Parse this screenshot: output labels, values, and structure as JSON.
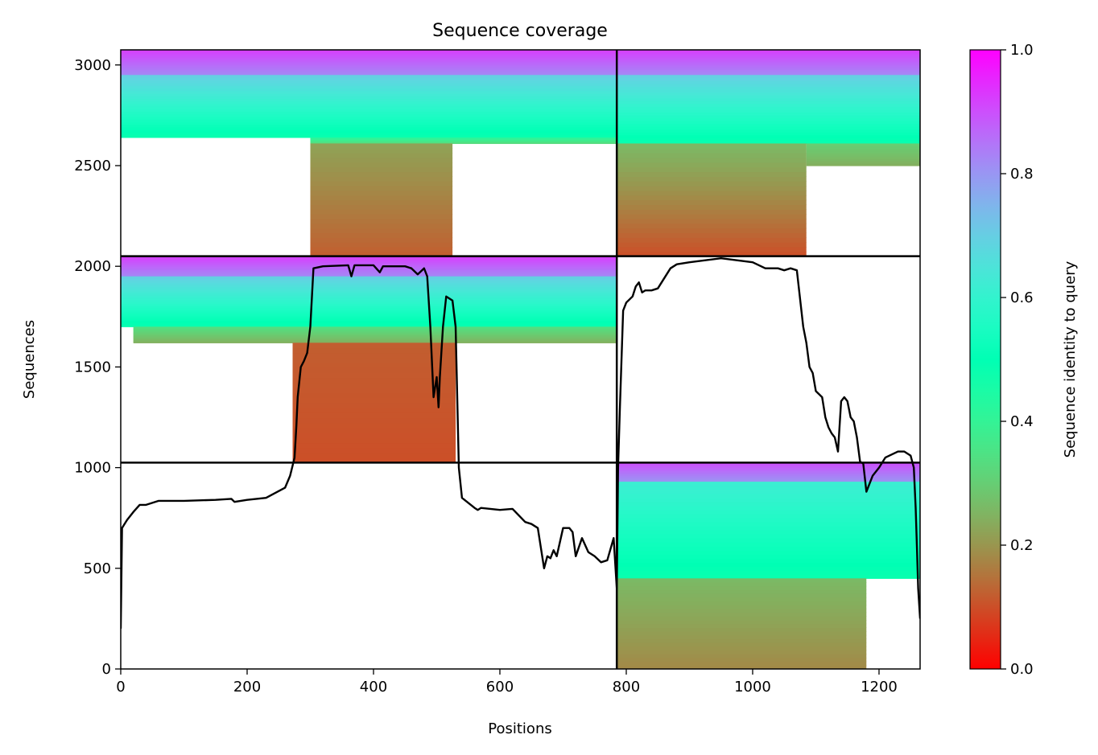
{
  "chart_data": {
    "type": "heatmap",
    "title": "Sequence coverage",
    "xlabel": "Positions",
    "ylabel": "Sequences",
    "xlim": [
      0,
      1265
    ],
    "ylim": [
      0,
      3075
    ],
    "x_ticks": [
      0,
      200,
      400,
      600,
      800,
      1000,
      1200
    ],
    "y_ticks": [
      0,
      500,
      1000,
      1500,
      2000,
      2500,
      3000
    ],
    "grid": false,
    "colormap": "rainbow_r",
    "colorbar": {
      "label": "Sequence identity to query",
      "range": [
        0,
        1
      ],
      "ticks": [
        0.0,
        0.2,
        0.4,
        0.6,
        0.8,
        1.0
      ],
      "tick_labels": [
        "0.0",
        "0.2",
        "0.4",
        "0.6",
        "0.8",
        "1.0"
      ]
    },
    "block_boundaries": {
      "vertical_x": 785,
      "horizontal_y": [
        1025,
        2050
      ]
    },
    "blocks": [
      {
        "id": "top-left",
        "x_range": [
          0,
          785
        ],
        "y_range": [
          2050,
          3075
        ],
        "bands": [
          {
            "x": [
              0,
              785
            ],
            "y": [
              2950,
              3075
            ],
            "identity": [
              0.82,
              0.92
            ]
          },
          {
            "x": [
              0,
              785
            ],
            "y": [
              2640,
              2950
            ],
            "identity": [
              0.48,
              0.7
            ]
          },
          {
            "x": [
              300,
              785
            ],
            "y": [
              2610,
              2640
            ],
            "identity": [
              0.32,
              0.42
            ]
          },
          {
            "x": [
              300,
              525
            ],
            "y": [
              2050,
              2610
            ],
            "identity": [
              0.12,
              0.22
            ]
          }
        ]
      },
      {
        "id": "top-right",
        "x_range": [
          785,
          1265
        ],
        "y_range": [
          2050,
          3075
        ],
        "bands": [
          {
            "x": [
              785,
              1265
            ],
            "y": [
              2950,
              3075
            ],
            "identity": [
              0.82,
              0.92
            ]
          },
          {
            "x": [
              785,
              1265
            ],
            "y": [
              2610,
              2950
            ],
            "identity": [
              0.48,
              0.7
            ]
          },
          {
            "x": [
              1085,
              1265
            ],
            "y": [
              2500,
              2610
            ],
            "identity": [
              0.24,
              0.3
            ]
          },
          {
            "x": [
              785,
              1085
            ],
            "y": [
              2050,
              2610
            ],
            "identity": [
              0.1,
              0.26
            ]
          }
        ]
      },
      {
        "id": "middle-left",
        "x_range": [
          0,
          785
        ],
        "y_range": [
          1025,
          2050
        ],
        "bands": [
          {
            "x": [
              0,
              785
            ],
            "y": [
              1950,
              2050
            ],
            "identity": [
              0.82,
              0.92
            ]
          },
          {
            "x": [
              0,
              785
            ],
            "y": [
              1700,
              1950
            ],
            "identity": [
              0.48,
              0.7
            ]
          },
          {
            "x": [
              20,
              785
            ],
            "y": [
              1620,
              1700
            ],
            "identity": [
              0.24,
              0.34
            ]
          },
          {
            "x": [
              272,
              530
            ],
            "y": [
              1025,
              1620
            ],
            "identity": [
              0.1,
              0.12
            ]
          }
        ]
      },
      {
        "id": "bottom-right",
        "x_range": [
          785,
          1265
        ],
        "y_range": [
          0,
          1025
        ],
        "bands": [
          {
            "x": [
              785,
              1265
            ],
            "y": [
              930,
              1025
            ],
            "identity": [
              0.8,
              0.9
            ]
          },
          {
            "x": [
              785,
              1265
            ],
            "y": [
              450,
              930
            ],
            "identity": [
              0.48,
              0.62
            ]
          },
          {
            "x": [
              785,
              1180
            ],
            "y": [
              0,
              450
            ],
            "identity": [
              0.18,
              0.26
            ]
          }
        ]
      }
    ],
    "coverage_line": {
      "color": "#000000",
      "x": [
        0,
        2,
        5,
        10,
        20,
        30,
        40,
        60,
        100,
        150,
        175,
        180,
        200,
        230,
        260,
        268,
        272,
        275,
        278,
        280,
        285,
        290,
        295,
        300,
        305,
        320,
        360,
        365,
        370,
        400,
        410,
        415,
        420,
        450,
        460,
        470,
        480,
        485,
        490,
        495,
        500,
        503,
        505,
        510,
        515,
        520,
        525,
        530,
        535,
        540,
        560,
        565,
        570,
        600,
        620,
        640,
        650,
        660,
        665,
        670,
        675,
        680,
        685,
        690,
        700,
        710,
        715,
        720,
        730,
        740,
        750,
        760,
        770,
        780,
        785,
        787,
        790,
        795,
        800,
        810,
        815,
        820,
        825,
        830,
        840,
        850,
        870,
        880,
        900,
        950,
        1000,
        1020,
        1040,
        1050,
        1060,
        1070,
        1080,
        1085,
        1090,
        1095,
        1100,
        1110,
        1115,
        1120,
        1125,
        1130,
        1135,
        1140,
        1145,
        1150,
        1155,
        1160,
        1165,
        1170,
        1175,
        1180,
        1190,
        1200,
        1210,
        1230,
        1240,
        1250,
        1255,
        1258,
        1260,
        1262,
        1265
      ],
      "y": [
        200,
        700,
        715,
        740,
        780,
        815,
        815,
        835,
        835,
        840,
        845,
        830,
        840,
        850,
        900,
        960,
        1010,
        1050,
        1210,
        1350,
        1500,
        1530,
        1570,
        1700,
        1990,
        2000,
        2005,
        1950,
        2005,
        2005,
        1970,
        2000,
        2000,
        2000,
        1990,
        1960,
        1990,
        1950,
        1700,
        1350,
        1450,
        1300,
        1450,
        1700,
        1850,
        1840,
        1830,
        1700,
        1000,
        850,
        800,
        790,
        800,
        790,
        795,
        730,
        720,
        700,
        600,
        500,
        560,
        550,
        590,
        560,
        700,
        700,
        680,
        560,
        650,
        580,
        560,
        530,
        540,
        650,
        400,
        1000,
        1300,
        1780,
        1820,
        1850,
        1900,
        1920,
        1870,
        1880,
        1880,
        1890,
        1990,
        2010,
        2020,
        2040,
        2020,
        1990,
        1990,
        1980,
        1990,
        1980,
        1700,
        1620,
        1500,
        1470,
        1380,
        1350,
        1250,
        1200,
        1170,
        1150,
        1080,
        1330,
        1350,
        1330,
        1250,
        1230,
        1150,
        1030,
        1020,
        880,
        960,
        1000,
        1050,
        1080,
        1080,
        1060,
        1000,
        800,
        600,
        400,
        250
      ]
    }
  }
}
